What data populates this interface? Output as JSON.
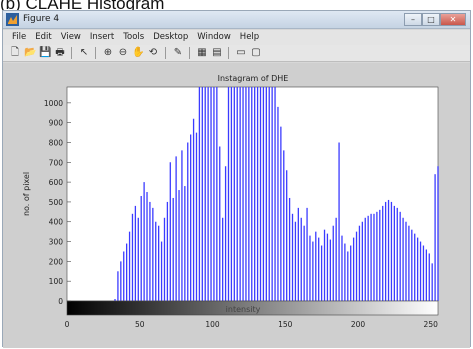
{
  "caption": "(b) CLAHE Histogram",
  "window": {
    "title": "Figure 4",
    "buttons": {
      "minimize": "–",
      "maximize": "□",
      "close": "✕"
    }
  },
  "menu": [
    "File",
    "Edit",
    "View",
    "Insert",
    "Tools",
    "Desktop",
    "Window",
    "Help"
  ],
  "toolbar": {
    "icons": [
      "new-file-icon",
      "open-folder-icon",
      "save-icon",
      "print-icon",
      "select-arrow-icon",
      "zoom-in-icon",
      "zoom-out-icon",
      "pan-hand-icon",
      "rotate-3d-icon",
      "data-cursor-icon",
      "colorbar-icon",
      "legend-icon",
      "hide-plot-tools-icon",
      "show-plot-tools-icon"
    ],
    "glyphs": [
      "🗋",
      "📂",
      "💾",
      "🖶",
      "↖",
      "⊕",
      "⊖",
      "✋",
      "⟲",
      "✎",
      "▦",
      "▤",
      "▭",
      "▢"
    ]
  },
  "chart_data": {
    "type": "bar",
    "title": "Instagram of DHE",
    "xlabel": "intensity",
    "ylabel": "no. of pixel",
    "xlim": [
      0,
      255
    ],
    "ylim": [
      0,
      1080
    ],
    "xticks": [
      0,
      50,
      100,
      150,
      200,
      250
    ],
    "yticks": [
      0,
      100,
      200,
      300,
      400,
      500,
      600,
      700,
      800,
      900,
      1000
    ],
    "color": "#3b3bff",
    "x": [
      33,
      35,
      37,
      39,
      41,
      43,
      45,
      47,
      49,
      51,
      53,
      55,
      57,
      59,
      61,
      63,
      65,
      67,
      69,
      71,
      73,
      75,
      77,
      79,
      81,
      83,
      85,
      87,
      89,
      91,
      93,
      95,
      97,
      99,
      101,
      103,
      105,
      107,
      109,
      111,
      113,
      115,
      117,
      119,
      121,
      123,
      125,
      127,
      129,
      131,
      133,
      135,
      137,
      139,
      141,
      143,
      145,
      147,
      149,
      151,
      153,
      155,
      157,
      159,
      161,
      163,
      165,
      167,
      169,
      171,
      173,
      175,
      177,
      179,
      181,
      183,
      185,
      187,
      189,
      191,
      193,
      195,
      197,
      199,
      201,
      203,
      205,
      207,
      209,
      211,
      213,
      215,
      217,
      219,
      221,
      223,
      225,
      227,
      229,
      231,
      233,
      235,
      237,
      239,
      241,
      243,
      245,
      247,
      249,
      251,
      253,
      255
    ],
    "values": [
      10,
      150,
      200,
      250,
      290,
      350,
      440,
      480,
      420,
      530,
      600,
      550,
      500,
      470,
      400,
      380,
      300,
      420,
      500,
      700,
      520,
      730,
      560,
      760,
      580,
      800,
      840,
      920,
      850,
      1080,
      1080,
      1080,
      1080,
      1080,
      1080,
      1080,
      780,
      420,
      680,
      1080,
      1080,
      1080,
      1080,
      1080,
      1080,
      1080,
      1080,
      1080,
      1080,
      1080,
      1080,
      1080,
      1080,
      1080,
      1080,
      1080,
      980,
      880,
      760,
      660,
      520,
      440,
      400,
      470,
      420,
      380,
      470,
      330,
      300,
      350,
      320,
      280,
      360,
      340,
      310,
      380,
      420,
      800,
      330,
      290,
      250,
      280,
      320,
      350,
      380,
      400,
      420,
      430,
      440,
      440,
      450,
      460,
      480,
      500,
      510,
      500,
      480,
      470,
      450,
      420,
      400,
      380,
      360,
      340,
      320,
      300,
      280,
      260,
      240,
      190,
      640,
      680
    ]
  }
}
